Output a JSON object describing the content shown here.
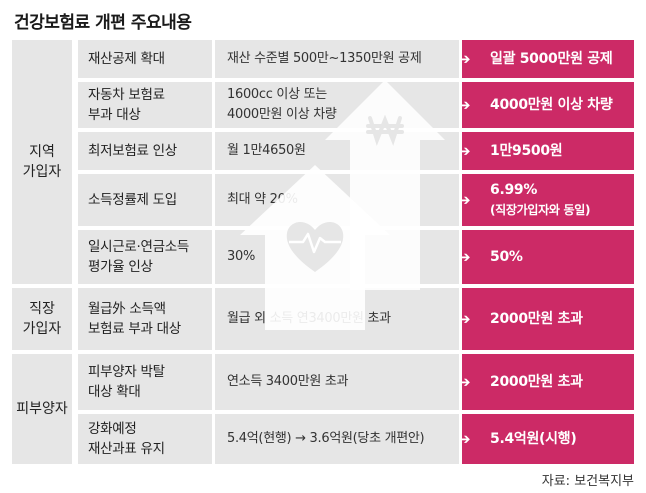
{
  "title": "건강보험료 개편 주요내용",
  "source": "자료: 보건복지부",
  "groups": [
    {
      "label_1": "지역",
      "label_2": "가입자"
    },
    {
      "label_1": "직장",
      "label_2": "가입자"
    },
    {
      "label_1": "피부양자",
      "label_2": ""
    }
  ],
  "rows": [
    {
      "item_1": "재산공제 확대",
      "item_2": "",
      "current": "재산 수준별 500만~1350만원 공제",
      "current_2": "",
      "change": "일괄 5000만원 공제",
      "change_2": ""
    },
    {
      "item_1": "자동차 보험료",
      "item_2": "부과 대상",
      "current": "1600cc 이상 또는",
      "current_2": "4000만원 이상 차량",
      "change": "4000만원 이상 차량",
      "change_2": ""
    },
    {
      "item_1": "최저보험료 인상",
      "item_2": "",
      "current": "월 1만4650원",
      "current_2": "",
      "change": "1만9500원",
      "change_2": ""
    },
    {
      "item_1": "소득정률제 도입",
      "item_2": "",
      "current": "최대 약 20%",
      "current_2": "",
      "change": "6.99%",
      "change_2": "(직장가입자와 동일)"
    },
    {
      "item_1": "일시근로·연금소득",
      "item_2": "평가율 인상",
      "current": "30%",
      "current_2": "",
      "change": "50%",
      "change_2": ""
    },
    {
      "item_1": "월급外 소득액",
      "item_2": "보험료 부과 대상",
      "current": "월급 외 소득 연3400만원 초과",
      "current_2": "",
      "change": "2000만원 초과",
      "change_2": ""
    },
    {
      "item_1": "피부양자 박탈",
      "item_2": "대상 확대",
      "current": "연소득 3400만원 초과",
      "current_2": "",
      "change": "2000만원 초과",
      "change_2": ""
    },
    {
      "item_1": "강화예정",
      "item_2": "재산과표 유지",
      "current": "5.4억(현행) → 3.6억원(당초 개편안)",
      "current_2": "",
      "change": "5.4억원(시행)",
      "change_2": ""
    }
  ],
  "arrow_glyph": "➔",
  "icons": [
    "house-arrow-icon",
    "won-sign-icon",
    "heart-pulse-icon"
  ],
  "colors": {
    "accent": "#cc2a66",
    "cell_bg": "#e6e6e6"
  }
}
